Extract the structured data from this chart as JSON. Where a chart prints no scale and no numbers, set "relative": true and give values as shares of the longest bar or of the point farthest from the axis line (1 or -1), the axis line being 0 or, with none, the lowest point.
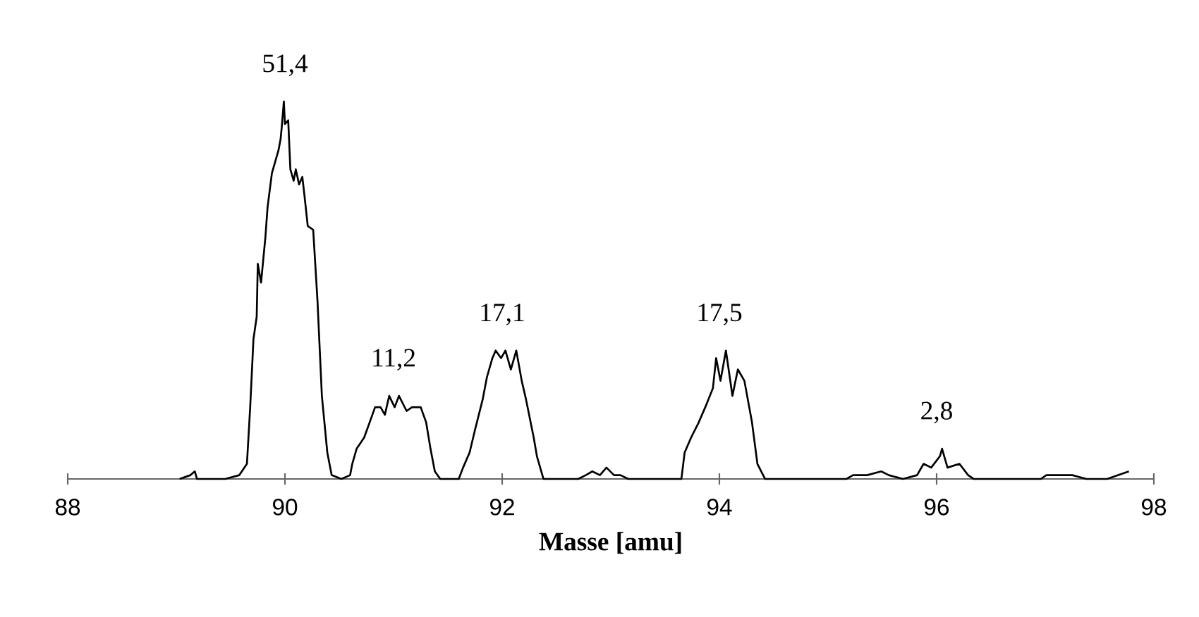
{
  "chart_data": {
    "type": "line",
    "relative": true,
    "color": "#000000",
    "xlabel": "Masse [amu]",
    "xlim": [
      88,
      98
    ],
    "xticks": [
      88,
      90,
      92,
      94,
      96,
      98
    ],
    "x": [
      89.03,
      89.13,
      89.17,
      89.19,
      89.45,
      89.58,
      89.65,
      89.68,
      89.71,
      89.74,
      89.75,
      89.78,
      89.82,
      89.84,
      89.88,
      89.94,
      89.96,
      89.97,
      89.99,
      90.0,
      90.03,
      90.05,
      90.08,
      90.1,
      90.13,
      90.16,
      90.18,
      90.21,
      90.26,
      90.3,
      90.34,
      90.39,
      90.43,
      90.52,
      90.6,
      90.62,
      90.66,
      90.73,
      90.78,
      90.83,
      90.88,
      90.92,
      90.96,
      91.01,
      91.05,
      91.12,
      91.17,
      91.25,
      91.3,
      91.34,
      91.38,
      91.43,
      91.6,
      91.64,
      91.7,
      91.75,
      91.82,
      91.86,
      91.91,
      91.94,
      91.99,
      92.03,
      92.08,
      92.13,
      92.18,
      92.22,
      92.29,
      92.32,
      92.38,
      92.7,
      92.77,
      92.83,
      92.9,
      92.96,
      93.03,
      93.09,
      93.16,
      93.26,
      93.65,
      93.68,
      93.74,
      93.81,
      93.87,
      93.94,
      93.97,
      94.01,
      94.06,
      94.12,
      94.17,
      94.23,
      94.3,
      94.35,
      94.42,
      95.17,
      95.23,
      95.36,
      95.49,
      95.56,
      95.69,
      95.82,
      95.88,
      95.95,
      96.03,
      96.05,
      96.1,
      96.21,
      96.29,
      96.34,
      96.96,
      97.01,
      97.12,
      97.25,
      97.38,
      97.57,
      97.77
    ],
    "values": [
      0,
      0.01,
      0.02,
      0,
      0,
      0.01,
      0.04,
      0.19,
      0.37,
      0.43,
      0.57,
      0.52,
      0.64,
      0.72,
      0.81,
      0.87,
      0.9,
      0.93,
      1.0,
      0.94,
      0.95,
      0.82,
      0.79,
      0.82,
      0.78,
      0.8,
      0.75,
      0.67,
      0.66,
      0.47,
      0.22,
      0.07,
      0.01,
      0,
      0.01,
      0.04,
      0.08,
      0.11,
      0.15,
      0.19,
      0.19,
      0.17,
      0.22,
      0.19,
      0.22,
      0.18,
      0.19,
      0.19,
      0.15,
      0.08,
      0.02,
      0,
      0,
      0.03,
      0.07,
      0.13,
      0.21,
      0.27,
      0.32,
      0.34,
      0.32,
      0.34,
      0.29,
      0.34,
      0.26,
      0.21,
      0.11,
      0.06,
      0,
      0,
      0.01,
      0.02,
      0.01,
      0.03,
      0.01,
      0.01,
      0,
      0,
      0,
      0.07,
      0.11,
      0.15,
      0.19,
      0.24,
      0.32,
      0.26,
      0.34,
      0.22,
      0.29,
      0.26,
      0.15,
      0.04,
      0,
      0,
      0.01,
      0.01,
      0.02,
      0.01,
      0,
      0.01,
      0.04,
      0.03,
      0.06,
      0.08,
      0.03,
      0.04,
      0.01,
      0,
      0,
      0.01,
      0.01,
      0.01,
      0,
      0,
      0.02
    ],
    "annotations": [
      {
        "text": "51,4",
        "x": 90.0,
        "y": 1.0
      },
      {
        "text": "11,2",
        "x": 91.0,
        "y": 0.22
      },
      {
        "text": "17,1",
        "x": 92.0,
        "y": 0.34
      },
      {
        "text": "17,5",
        "x": 94.0,
        "y": 0.34
      },
      {
        "text": "2,8",
        "x": 96.0,
        "y": 0.08
      }
    ]
  }
}
